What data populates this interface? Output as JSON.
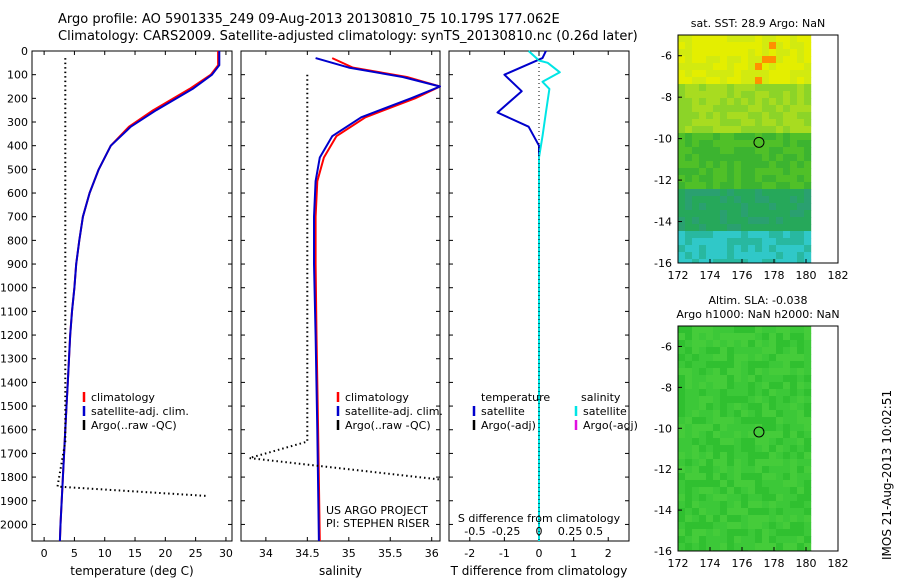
{
  "figure": {
    "title_line1": "Argo profile: AO 5901335_249 09-Aug-2013 20130810_75 10.179S 177.062E",
    "title_line2": "Climatology: CARS2009. Satellite-adjusted climatology: synTS_20130810.nc (0.26d later)",
    "project_line1": "US ARGO PROJECT",
    "project_line2": "PI: STEPHEN RISER",
    "stamp": "IMOS 21-Aug-2013 10:02:51",
    "colors": {
      "climatology": "#ff0000",
      "satellite": "#0000cc",
      "argo": "#000000",
      "sal_satellite": "#00e5e5",
      "sal_argo": "#e010e0"
    }
  },
  "chart_data": [
    {
      "type": "line",
      "id": "temperature",
      "xlabel": "temperature (deg C)",
      "ylabel": "",
      "xlim": [
        -2,
        31
      ],
      "ylim": [
        2070,
        0
      ],
      "x_ticks": [
        0,
        5,
        10,
        15,
        20,
        25,
        30
      ],
      "y_ticks": [
        0,
        100,
        200,
        300,
        400,
        500,
        600,
        700,
        800,
        900,
        1000,
        1100,
        1200,
        1300,
        1400,
        1500,
        1600,
        1700,
        1800,
        1900,
        2000
      ],
      "legend": [
        "climatology",
        "satellite-adj. clim.",
        "Argo(..raw -QC)"
      ],
      "series": [
        {
          "name": "climatology",
          "color": "#ff0000",
          "points": [
            [
              28.7,
              0
            ],
            [
              28.7,
              60
            ],
            [
              27.5,
              100
            ],
            [
              24,
              160
            ],
            [
              18,
              250
            ],
            [
              14,
              320
            ],
            [
              11,
              400
            ],
            [
              9,
              500
            ],
            [
              7.5,
              600
            ],
            [
              6.4,
              700
            ],
            [
              5.8,
              800
            ],
            [
              5.3,
              900
            ],
            [
              5,
              1000
            ],
            [
              4.6,
              1100
            ],
            [
              4.3,
              1200
            ],
            [
              4.1,
              1300
            ],
            [
              3.9,
              1400
            ],
            [
              3.7,
              1500
            ],
            [
              3.5,
              1600
            ],
            [
              3.3,
              1700
            ],
            [
              3.1,
              1800
            ],
            [
              2.9,
              1900
            ],
            [
              2.7,
              2000
            ],
            [
              2.6,
              2070
            ]
          ]
        },
        {
          "name": "satellite-adj. clim.",
          "color": "#0000cc",
          "points": [
            [
              28.9,
              0
            ],
            [
              28.9,
              60
            ],
            [
              27.7,
              100
            ],
            [
              24.5,
              160
            ],
            [
              18.5,
              250
            ],
            [
              14.3,
              320
            ],
            [
              11,
              400
            ],
            [
              9,
              500
            ],
            [
              7.5,
              600
            ],
            [
              6.4,
              700
            ],
            [
              5.8,
              800
            ],
            [
              5.3,
              900
            ],
            [
              5,
              1000
            ],
            [
              4.6,
              1100
            ],
            [
              4.3,
              1200
            ],
            [
              4.1,
              1300
            ],
            [
              3.9,
              1400
            ],
            [
              3.7,
              1500
            ],
            [
              3.5,
              1600
            ],
            [
              3.3,
              1700
            ],
            [
              3.1,
              1800
            ],
            [
              2.9,
              1900
            ],
            [
              2.7,
              2000
            ],
            [
              2.6,
              2070
            ]
          ]
        },
        {
          "name": "Argo(..raw -QC)",
          "color": "#000000",
          "dotted": true,
          "points": [
            [
              3.5,
              30
            ],
            [
              3.5,
              1650
            ],
            [
              2.2,
              1840
            ],
            [
              27,
              1880
            ]
          ]
        }
      ]
    },
    {
      "type": "line",
      "id": "salinity",
      "xlabel": "salinity",
      "ylabel": "",
      "xlim": [
        33.7,
        36.1
      ],
      "ylim": [
        2070,
        0
      ],
      "x_ticks": [
        34,
        34.5,
        35,
        35.5,
        36
      ],
      "legend": [
        "climatology",
        "satellite-adj. clim.",
        "Argo(..raw -QC)"
      ],
      "series": [
        {
          "name": "climatology",
          "color": "#ff0000",
          "points": [
            [
              34.8,
              30
            ],
            [
              35.05,
              70
            ],
            [
              35.7,
              110
            ],
            [
              36.1,
              150
            ],
            [
              35.8,
              200
            ],
            [
              35.2,
              280
            ],
            [
              34.85,
              360
            ],
            [
              34.7,
              450
            ],
            [
              34.62,
              550
            ],
            [
              34.6,
              700
            ],
            [
              34.6,
              900
            ],
            [
              34.61,
              1200
            ],
            [
              34.63,
              1600
            ],
            [
              34.65,
              2070
            ]
          ]
        },
        {
          "name": "satellite-adj. clim.",
          "color": "#0000cc",
          "points": [
            [
              34.6,
              30
            ],
            [
              35.0,
              70
            ],
            [
              35.65,
              110
            ],
            [
              36.1,
              150
            ],
            [
              35.75,
              200
            ],
            [
              35.15,
              280
            ],
            [
              34.8,
              360
            ],
            [
              34.65,
              450
            ],
            [
              34.6,
              550
            ],
            [
              34.58,
              700
            ],
            [
              34.58,
              900
            ],
            [
              34.6,
              1200
            ],
            [
              34.62,
              1600
            ],
            [
              34.64,
              2070
            ]
          ]
        },
        {
          "name": "Argo(..raw -QC)",
          "color": "#000000",
          "dotted": true,
          "points": [
            [
              34.5,
              100
            ],
            [
              34.5,
              1650
            ],
            [
              33.8,
              1720
            ],
            [
              36.1,
              1810
            ]
          ]
        }
      ]
    },
    {
      "type": "line",
      "id": "differences",
      "xlabel": "T difference from climatology",
      "xlabel_top": "S difference from climatology",
      "xlim": [
        -2.6,
        2.6
      ],
      "ylim": [
        2070,
        0
      ],
      "x_ticks_T": [
        -2,
        -1,
        0,
        1,
        2
      ],
      "x_ticks_S": [
        -0.5,
        -0.25,
        0,
        0.25,
        0.5
      ],
      "legend_titles": [
        "temperature",
        "salinity"
      ],
      "legend": [
        "satellite",
        "Argo(-adj)",
        "satellite",
        "Argo(-adj)"
      ],
      "series": [
        {
          "name": "temperature satellite",
          "color": "#0000cc",
          "points": [
            [
              0.2,
              0
            ],
            [
              0.1,
              30
            ],
            [
              -1,
              100
            ],
            [
              -0.5,
              170
            ],
            [
              -1.2,
              260
            ],
            [
              -0.3,
              320
            ],
            [
              0,
              400
            ],
            [
              0,
              700
            ],
            [
              0,
              1000
            ],
            [
              0,
              2070
            ]
          ]
        },
        {
          "name": "salinity satellite",
          "color": "#00e5e5",
          "points": [
            [
              -0.3,
              0
            ],
            [
              0,
              40
            ],
            [
              0.25,
              50
            ],
            [
              0.6,
              90
            ],
            [
              0.1,
              130
            ],
            [
              0.3,
              160
            ],
            [
              0.2,
              260
            ],
            [
              0.1,
              360
            ],
            [
              0,
              450
            ],
            [
              0,
              2070
            ]
          ]
        }
      ]
    },
    {
      "type": "heatmap",
      "id": "sst-map",
      "title": "sat. SST: 28.9 Argo: NaN",
      "xlim": [
        172,
        182
      ],
      "ylim": [
        -16,
        -5
      ],
      "x_ticks": [
        172,
        174,
        176,
        178,
        180,
        182
      ],
      "y_ticks": [
        -6,
        -8,
        -10,
        -12,
        -14,
        -16
      ],
      "argo_position": [
        177.06,
        -10.18
      ],
      "colors": [
        "#ff9000",
        "#e4ee00",
        "#a8dc20",
        "#50c028",
        "#26a85a",
        "#30c8c8"
      ]
    },
    {
      "type": "heatmap",
      "id": "sla-map",
      "title_line1": "Altim. SLA: -0.038",
      "title_line2": "Argo h1000: NaN h2000: NaN",
      "xlim": [
        172,
        182
      ],
      "ylim": [
        -16,
        -5
      ],
      "x_ticks": [
        172,
        174,
        176,
        178,
        180,
        182
      ],
      "y_ticks": [
        -6,
        -8,
        -10,
        -12,
        -14,
        -16
      ],
      "argo_position": [
        177.06,
        -10.18
      ],
      "colors": [
        "#30c030",
        "#3cc838",
        "#45cc3a"
      ]
    }
  ]
}
